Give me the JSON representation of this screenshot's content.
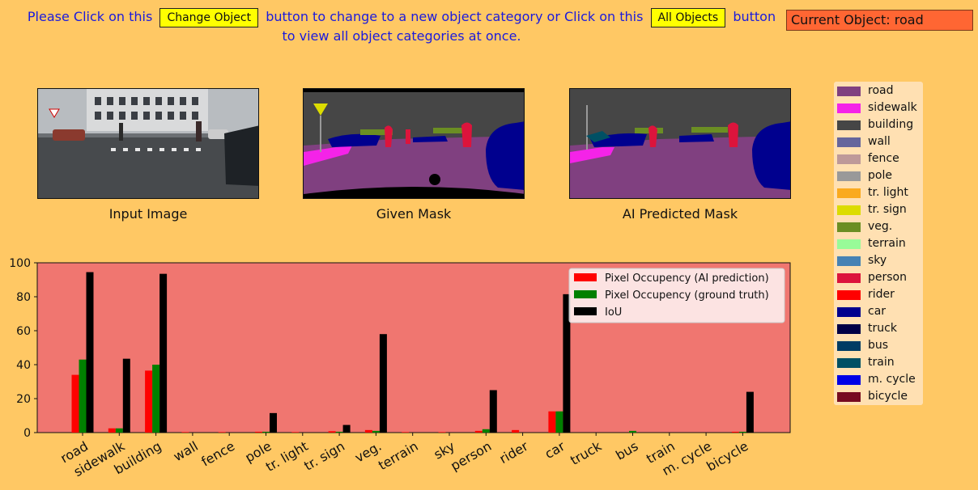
{
  "instructions": {
    "before_change": "Please Click on this",
    "change_button": "Change Object",
    "middle": "button to change to a new object category or Click on this",
    "all_button": "All Objects",
    "after_all": "button",
    "line2": "to view all object categories at once."
  },
  "current_object": "Current Object: road",
  "panels": {
    "input_label": "Input Image",
    "given_label": "Given Mask",
    "predicted_label": "AI Predicted Mask"
  },
  "class_legend": [
    {
      "name": "road",
      "color": "#804080"
    },
    {
      "name": "sidewalk",
      "color": "#F423E8"
    },
    {
      "name": "building",
      "color": "#464646"
    },
    {
      "name": "wall",
      "color": "#66669C"
    },
    {
      "name": "fence",
      "color": "#BE9999"
    },
    {
      "name": "pole",
      "color": "#999999"
    },
    {
      "name": "tr. light",
      "color": "#FAAA1E"
    },
    {
      "name": "tr. sign",
      "color": "#DCDC00"
    },
    {
      "name": "veg.",
      "color": "#6B8E23"
    },
    {
      "name": "terrain",
      "color": "#98FB98"
    },
    {
      "name": "sky",
      "color": "#4682B4"
    },
    {
      "name": "person",
      "color": "#DC143C"
    },
    {
      "name": "rider",
      "color": "#FF0000"
    },
    {
      "name": "car",
      "color": "#00008E"
    },
    {
      "name": "truck",
      "color": "#000046"
    },
    {
      "name": "bus",
      "color": "#003C64"
    },
    {
      "name": "train",
      "color": "#005064"
    },
    {
      "name": "m. cycle",
      "color": "#0000E6"
    },
    {
      "name": "bicycle",
      "color": "#770B20"
    }
  ],
  "chart_data": {
    "type": "bar",
    "categories": [
      "road",
      "sidewalk",
      "building",
      "wall",
      "fence",
      "pole",
      "tr. light",
      "tr. sign",
      "veg.",
      "terrain",
      "sky",
      "person",
      "rider",
      "car",
      "truck",
      "bus",
      "train",
      "m. cycle",
      "bicycle"
    ],
    "series": [
      {
        "name": "Pixel Occupency (AI prediction)",
        "color": "#FF0000",
        "values": [
          34,
          2.5,
          36.5,
          0.3,
          0.3,
          0.5,
          0.3,
          0.8,
          1.5,
          0.3,
          0.3,
          1,
          1.5,
          12.5,
          0,
          0,
          0,
          0,
          0.5
        ]
      },
      {
        "name": "Pixel Occupency (ground truth)",
        "color": "#008000",
        "values": [
          43,
          2.5,
          40,
          0,
          0,
          0.5,
          0,
          0.5,
          1,
          0,
          0,
          2,
          0,
          12.5,
          0,
          1,
          0,
          0,
          0.5
        ]
      },
      {
        "name": "IoU",
        "color": "#000000",
        "values": [
          94.5,
          43.5,
          93.5,
          0,
          0,
          11.5,
          0,
          4.5,
          58,
          0,
          0,
          25,
          0,
          81.5,
          0,
          0,
          0,
          0,
          24
        ]
      }
    ],
    "ylim": [
      0,
      100
    ],
    "yticks": [
      0,
      20,
      40,
      60,
      80,
      100
    ],
    "plot_background": "#F07670",
    "legend_position": "upper right"
  }
}
